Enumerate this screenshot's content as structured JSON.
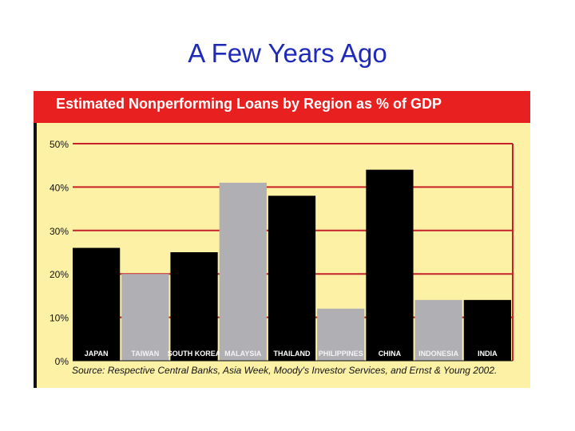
{
  "slide": {
    "title": "A Few Years Ago"
  },
  "chart_data": {
    "type": "bar",
    "title": "Estimated Nonperforming Loans by Region as % of GDP",
    "categories": [
      "JAPAN",
      "TAIWAN",
      "SOUTH KOREA",
      "MALAYSIA",
      "THAILAND",
      "PHILIPPINES",
      "CHINA",
      "INDONESIA",
      "INDIA"
    ],
    "values": [
      26,
      20,
      25,
      41,
      38,
      12,
      44,
      14,
      14
    ],
    "bar_colors": [
      "#000000",
      "#b0afb4",
      "#000000",
      "#b0afb4",
      "#000000",
      "#b0afb4",
      "#000000",
      "#b0afb4",
      "#000000"
    ],
    "ylim": [
      0,
      50
    ],
    "yticks": [
      "0%",
      "10%",
      "20%",
      "30%",
      "40%",
      "50%"
    ],
    "xlabel": "",
    "ylabel": "",
    "grid": true,
    "grid_color": "#c8212a",
    "source": "Source: Respective Central Banks, Asia Week, Moody's Investor Services, and Ernst & Young 2002."
  }
}
